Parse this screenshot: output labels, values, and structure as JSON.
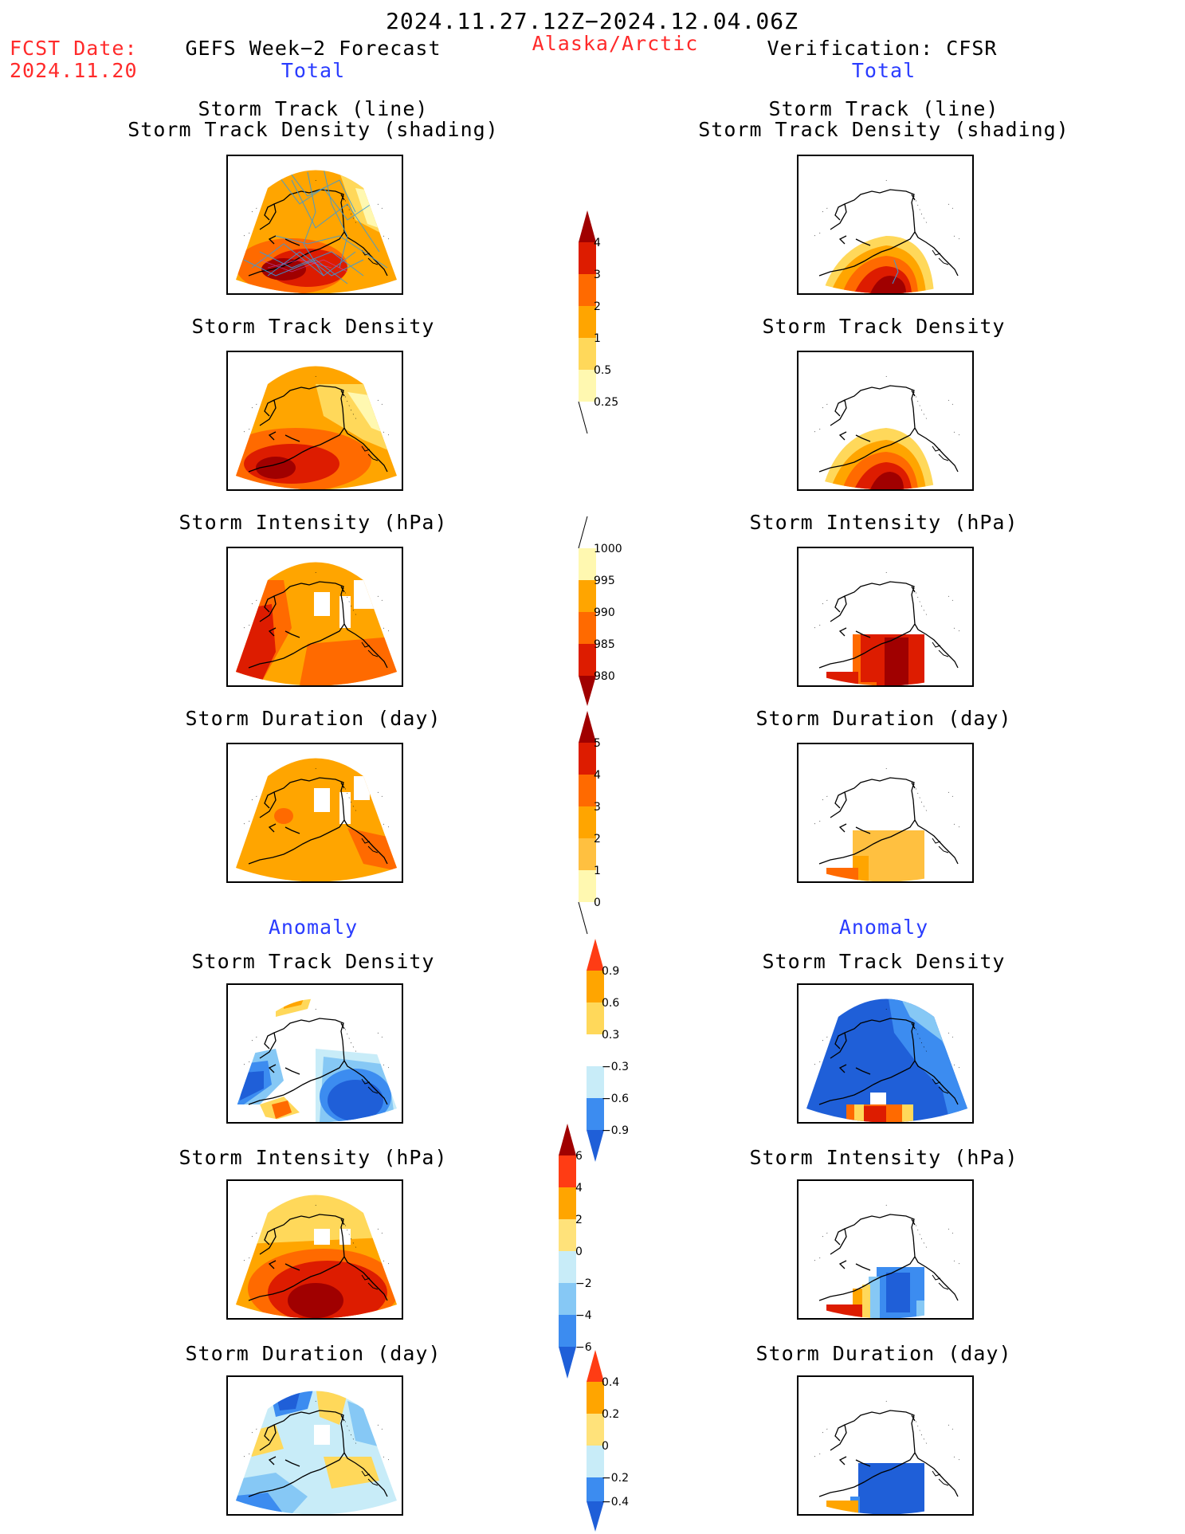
{
  "header": {
    "date_range": "2024.11.27.12Z−2024.12.04.06Z",
    "fcst_label": "FCST Date:",
    "fcst_date": "2024.11.20",
    "forecast_title": "GEFS Week−2 Forecast",
    "region": "Alaska/Arctic",
    "verification_title": "Verification: CFSR"
  },
  "sections": {
    "total": "Total",
    "anomaly": "Anomaly"
  },
  "titles": {
    "track_line": "Storm Track (line)",
    "track_shading": "Storm Track Density (shading)",
    "density": "Storm Track Density",
    "intensity": "Storm Intensity (hPa)",
    "duration": "Storm Duration (day)"
  },
  "colorbars": {
    "density": [
      "4",
      "3",
      "2",
      "1",
      "0.5",
      "0.25"
    ],
    "intensity": [
      "1000",
      "995",
      "990",
      "985",
      "980"
    ],
    "duration": [
      "5",
      "4",
      "3",
      "2",
      "1",
      "0"
    ],
    "density_anom": [
      "0.9",
      "0.6",
      "0.3",
      "−0.3",
      "−0.6",
      "−0.9"
    ],
    "intensity_anom": [
      "6",
      "4",
      "2",
      "0",
      "−2",
      "−4",
      "−6"
    ],
    "duration_anom": [
      "0.4",
      "0.2",
      "0",
      "−0.2",
      "−0.4"
    ]
  },
  "colors": {
    "warm": [
      "#fff8b0",
      "#ffd85a",
      "#ffa500",
      "#ff6a00",
      "#dd1c00",
      "#a00000"
    ],
    "cool": [
      "#1f5fd8",
      "#3c8cf0",
      "#86c8f5",
      "#c8ecf8"
    ],
    "track_line": "#3a9ad9",
    "text_red": "#ff2a2a",
    "text_blue": "#2a3cff"
  }
}
